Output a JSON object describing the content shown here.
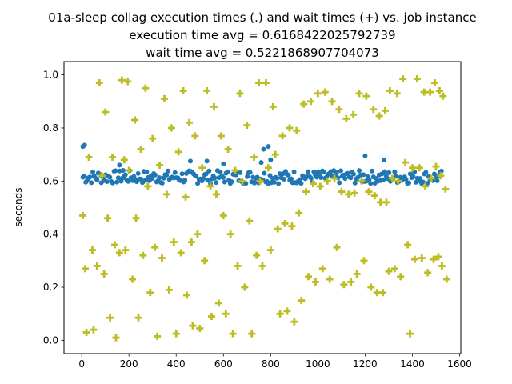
{
  "chart_data": {
    "type": "scatter",
    "title": [
      "01a-sleep collag execution times (.) and wait times (+) vs. job instance",
      "execution time avg = 0.6168422025792739",
      "wait time avg = 0.5221868907704073"
    ],
    "xlabel": "",
    "ylabel": "seconds",
    "xlim": [
      -75,
      1605
    ],
    "ylim": [
      -0.05,
      1.05
    ],
    "xticks": [
      0,
      200,
      400,
      600,
      800,
      1000,
      1200,
      1400,
      1600
    ],
    "xtick_labels": [
      "0",
      "200",
      "400",
      "600",
      "800",
      "1000",
      "1200",
      "1400",
      "1600"
    ],
    "yticks": [
      0.0,
      0.2,
      0.4,
      0.6,
      0.8,
      1.0
    ],
    "ytick_labels": [
      "0.0",
      "0.2",
      "0.4",
      "0.6",
      "0.8",
      "1.0"
    ],
    "grid": false,
    "series": [
      {
        "marker": "dot",
        "color": "#1f77b4",
        "x_range": [
          5,
          1525
        ],
        "typical_band": [
          0.59,
          0.64
        ],
        "outliers": [
          [
            5,
            0.73
          ],
          [
            12,
            0.735
          ],
          [
            70,
            0.63
          ],
          [
            160,
            0.66
          ],
          [
            175,
            0.64
          ],
          [
            460,
            0.675
          ],
          [
            530,
            0.675
          ],
          [
            600,
            0.665
          ],
          [
            760,
            0.67
          ],
          [
            770,
            0.72
          ],
          [
            790,
            0.73
          ],
          [
            800,
            0.68
          ],
          [
            1200,
            0.695
          ],
          [
            1280,
            0.68
          ]
        ]
      },
      {
        "marker": "plus",
        "color": "#bcbd22",
        "points": [
          [
            5,
            0.47
          ],
          [
            15,
            0.27
          ],
          [
            20,
            0.03
          ],
          [
            30,
            0.69
          ],
          [
            45,
            0.34
          ],
          [
            50,
            0.04
          ],
          [
            65,
            0.28
          ],
          [
            75,
            0.97
          ],
          [
            85,
            0.62
          ],
          [
            95,
            0.25
          ],
          [
            100,
            0.86
          ],
          [
            110,
            0.46
          ],
          [
            120,
            0.085
          ],
          [
            130,
            0.69
          ],
          [
            140,
            0.36
          ],
          [
            145,
            0.01
          ],
          [
            160,
            0.33
          ],
          [
            170,
            0.98
          ],
          [
            180,
            0.68
          ],
          [
            185,
            0.34
          ],
          [
            195,
            0.975
          ],
          [
            200,
            0.64
          ],
          [
            215,
            0.23
          ],
          [
            225,
            0.83
          ],
          [
            230,
            0.46
          ],
          [
            240,
            0.085
          ],
          [
            250,
            0.72
          ],
          [
            260,
            0.32
          ],
          [
            270,
            0.95
          ],
          [
            280,
            0.58
          ],
          [
            290,
            0.18
          ],
          [
            300,
            0.76
          ],
          [
            310,
            0.35
          ],
          [
            320,
            0.015
          ],
          [
            330,
            0.66
          ],
          [
            340,
            0.31
          ],
          [
            350,
            0.91
          ],
          [
            360,
            0.55
          ],
          [
            370,
            0.19
          ],
          [
            380,
            0.8
          ],
          [
            390,
            0.37
          ],
          [
            400,
            0.025
          ],
          [
            410,
            0.71
          ],
          [
            420,
            0.33
          ],
          [
            430,
            0.94
          ],
          [
            440,
            0.54
          ],
          [
            445,
            0.17
          ],
          [
            455,
            0.82
          ],
          [
            465,
            0.37
          ],
          [
            470,
            0.055
          ],
          [
            480,
            0.77
          ],
          [
            490,
            0.4
          ],
          [
            500,
            0.045
          ],
          [
            510,
            0.65
          ],
          [
            520,
            0.3
          ],
          [
            530,
            0.94
          ],
          [
            545,
            0.58
          ],
          [
            550,
            0.09
          ],
          [
            560,
            0.88
          ],
          [
            570,
            0.55
          ],
          [
            580,
            0.14
          ],
          [
            590,
            0.77
          ],
          [
            600,
            0.47
          ],
          [
            610,
            0.1
          ],
          [
            620,
            0.72
          ],
          [
            630,
            0.4
          ],
          [
            640,
            0.025
          ],
          [
            650,
            0.64
          ],
          [
            660,
            0.28
          ],
          [
            670,
            0.93
          ],
          [
            680,
            0.6
          ],
          [
            690,
            0.2
          ],
          [
            700,
            0.81
          ],
          [
            710,
            0.45
          ],
          [
            720,
            0.025
          ],
          [
            730,
            0.69
          ],
          [
            740,
            0.32
          ],
          [
            750,
            0.97
          ],
          [
            755,
            0.6
          ],
          [
            765,
            0.28
          ],
          [
            780,
            0.97
          ],
          [
            790,
            0.65
          ],
          [
            800,
            0.34
          ],
          [
            810,
            0.88
          ],
          [
            820,
            0.7
          ],
          [
            830,
            0.42
          ],
          [
            840,
            0.1
          ],
          [
            850,
            0.77
          ],
          [
            860,
            0.44
          ],
          [
            870,
            0.11
          ],
          [
            880,
            0.8
          ],
          [
            890,
            0.43
          ],
          [
            900,
            0.07
          ],
          [
            910,
            0.79
          ],
          [
            920,
            0.48
          ],
          [
            930,
            0.15
          ],
          [
            940,
            0.89
          ],
          [
            950,
            0.56
          ],
          [
            960,
            0.24
          ],
          [
            970,
            0.9
          ],
          [
            980,
            0.59
          ],
          [
            990,
            0.22
          ],
          [
            1000,
            0.93
          ],
          [
            1010,
            0.58
          ],
          [
            1020,
            0.27
          ],
          [
            1030,
            0.935
          ],
          [
            1040,
            0.6
          ],
          [
            1050,
            0.23
          ],
          [
            1060,
            0.9
          ],
          [
            1070,
            0.61
          ],
          [
            1080,
            0.35
          ],
          [
            1090,
            0.87
          ],
          [
            1100,
            0.56
          ],
          [
            1110,
            0.21
          ],
          [
            1120,
            0.835
          ],
          [
            1130,
            0.55
          ],
          [
            1140,
            0.22
          ],
          [
            1150,
            0.85
          ],
          [
            1155,
            0.555
          ],
          [
            1165,
            0.25
          ],
          [
            1175,
            0.93
          ],
          [
            1185,
            0.6
          ],
          [
            1195,
            0.3
          ],
          [
            1205,
            0.92
          ],
          [
            1215,
            0.56
          ],
          [
            1225,
            0.2
          ],
          [
            1235,
            0.87
          ],
          [
            1240,
            0.545
          ],
          [
            1250,
            0.18
          ],
          [
            1260,
            0.845
          ],
          [
            1265,
            0.52
          ],
          [
            1275,
            0.18
          ],
          [
            1285,
            0.865
          ],
          [
            1290,
            0.52
          ],
          [
            1300,
            0.26
          ],
          [
            1305,
            0.94
          ],
          [
            1315,
            0.61
          ],
          [
            1325,
            0.27
          ],
          [
            1335,
            0.93
          ],
          [
            1340,
            0.6
          ],
          [
            1350,
            0.24
          ],
          [
            1360,
            0.985
          ],
          [
            1370,
            0.67
          ],
          [
            1380,
            0.36
          ],
          [
            1390,
            0.025
          ],
          [
            1400,
            0.65
          ],
          [
            1410,
            0.305
          ],
          [
            1420,
            0.985
          ],
          [
            1430,
            0.65
          ],
          [
            1440,
            0.31
          ],
          [
            1450,
            0.935
          ],
          [
            1455,
            0.58
          ],
          [
            1465,
            0.255
          ],
          [
            1475,
            0.935
          ],
          [
            1480,
            0.61
          ],
          [
            1490,
            0.305
          ],
          [
            1495,
            0.97
          ],
          [
            1500,
            0.655
          ],
          [
            1510,
            0.315
          ],
          [
            1515,
            0.94
          ],
          [
            1520,
            0.62
          ],
          [
            1525,
            0.28
          ],
          [
            1530,
            0.92
          ],
          [
            1540,
            0.57
          ],
          [
            1545,
            0.23
          ]
        ]
      }
    ]
  }
}
